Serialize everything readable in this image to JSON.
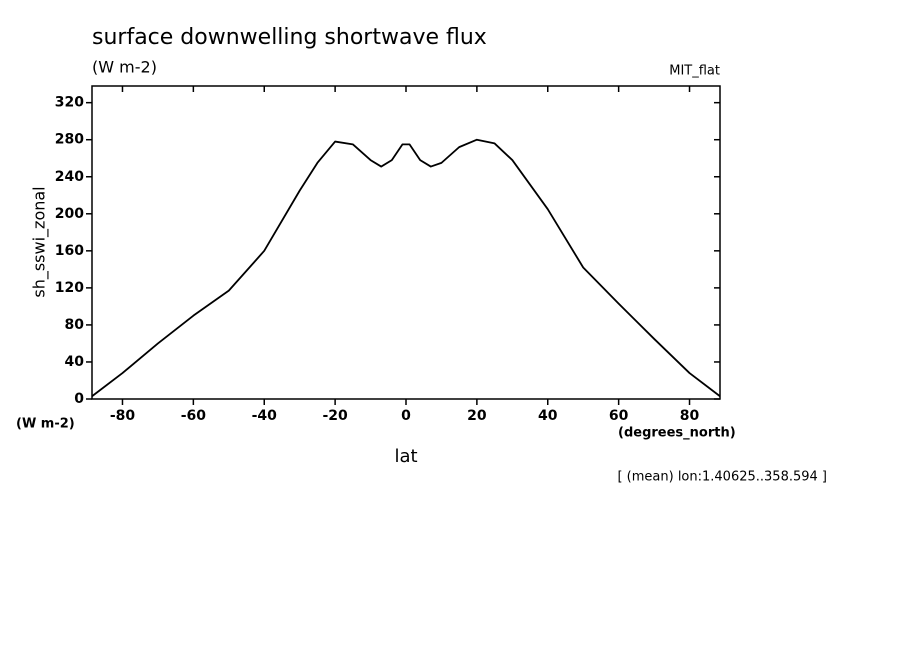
{
  "chart_data": {
    "type": "line",
    "title": "surface downwelling shortwave flux",
    "subtitle": "(W m-2)",
    "dataset_label": "MIT_flat",
    "y_axis_label": "sh_sswi_zonal",
    "y_units_label": "(W m-2)",
    "x_units_label": "(degrees_north)",
    "x_axis_label": "lat",
    "annotation": "[ (mean) lon:1.40625..358.594 ]",
    "x": [
      -88.6,
      -80,
      -70,
      -60,
      -50,
      -40,
      -30,
      -25,
      -20,
      -15,
      -10,
      -7,
      -4,
      -1,
      1,
      4,
      7,
      10,
      15,
      20,
      25,
      30,
      40,
      50,
      60,
      70,
      80,
      88.6
    ],
    "series": [
      {
        "name": "sh_sswi_zonal",
        "color": "#000000",
        "values": [
          3,
          28,
          60,
          90,
          117,
          160,
          225,
          255,
          278,
          275,
          258,
          251,
          258,
          275,
          275,
          258,
          251,
          255,
          272,
          280,
          276,
          258,
          205,
          142,
          103,
          65,
          28,
          3
        ]
      }
    ],
    "xlim": [
      -88.6,
      88.6
    ],
    "ylim": [
      0,
      338
    ],
    "xticks": [
      -80,
      -60,
      -40,
      -20,
      0,
      20,
      40,
      60,
      80
    ],
    "yticks": [
      0,
      40,
      80,
      120,
      160,
      200,
      240,
      280,
      320
    ]
  }
}
